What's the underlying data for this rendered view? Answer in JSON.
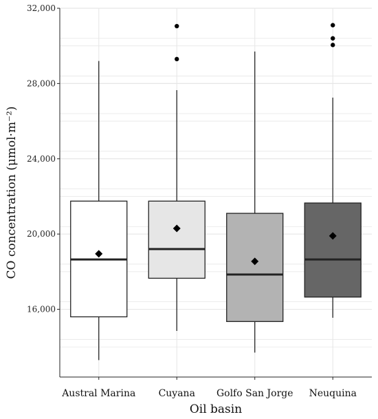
{
  "chart_data": {
    "type": "boxplot",
    "xlabel": "Oil basin",
    "ylabel": "CO concentration (μmol·m⁻²)",
    "ylim": [
      12400,
      32000
    ],
    "yticks": [
      16000,
      20000,
      24000,
      28000,
      32000
    ],
    "ytick_labels": [
      "16,000",
      "20,000",
      "24,000",
      "28,000",
      "32,000"
    ],
    "grid": true,
    "categories": [
      "Austral Marina",
      "Cuyana",
      "Golfo San Jorge",
      "Neuquina"
    ],
    "boxes": [
      {
        "category": "Austral Marina",
        "whisker_low": 13300,
        "q1": 15600,
        "median": 18650,
        "q3": 21750,
        "whisker_high": 29200,
        "mean": 18950,
        "outliers": [],
        "fill": "#ffffff"
      },
      {
        "category": "Cuyana",
        "whisker_low": 14850,
        "q1": 17650,
        "median": 19200,
        "q3": 21750,
        "whisker_high": 27650,
        "mean": 20300,
        "outliers": [
          29300,
          31050
        ],
        "fill": "#e6e6e6"
      },
      {
        "category": "Golfo San Jorge",
        "whisker_low": 13700,
        "q1": 15350,
        "median": 17850,
        "q3": 21100,
        "whisker_high": 29700,
        "mean": 18550,
        "outliers": [],
        "fill": "#b3b3b3"
      },
      {
        "category": "Neuquina",
        "whisker_low": 15550,
        "q1": 16650,
        "median": 18650,
        "q3": 21650,
        "whisker_high": 27250,
        "mean": 19900,
        "outliers": [
          30050,
          30400,
          31100
        ],
        "fill": "#666666"
      }
    ],
    "colors": {
      "grid": "#e6e6e6",
      "line": "#222222",
      "point": "#000000"
    }
  }
}
